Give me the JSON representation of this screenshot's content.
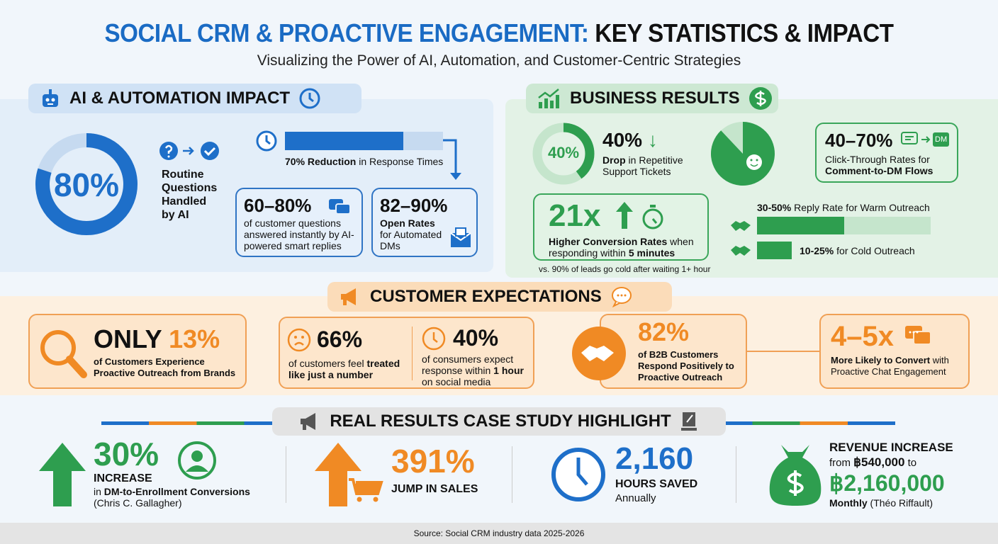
{
  "header": {
    "title_part1": "SOCIAL CRM & PROACTIVE ENGAGEMENT:",
    "title_part2": "KEY STATISTICS & IMPACT",
    "subtitle": "Visualizing the Power of AI, Automation, and Customer-Centric Strategies"
  },
  "colors": {
    "blue": "#1e6fc9",
    "green": "#2e9e4f",
    "orange": "#f08a24",
    "dark": "#111111"
  },
  "ai": {
    "heading": "AI & AUTOMATION IMPACT",
    "donut_value": "80%",
    "donut_fraction": 0.8,
    "donut_label": [
      "Routine",
      "Questions",
      "Handled",
      "by AI"
    ],
    "response_bar_fraction": 0.7,
    "response_bold": "70% Reduction",
    "response_rest": " in Response Times",
    "box1": {
      "value": "60–80%",
      "text": "of customer questions answered instantly by AI-powered smart replies"
    },
    "box2": {
      "value": "82–90%",
      "bold": "Open Rates",
      "text": "for Automated DMs"
    }
  },
  "business": {
    "heading": "BUSINESS RESULTS",
    "donut_value": "40%",
    "donut_fraction": 0.4,
    "drop_value": "40%",
    "drop_bold": "Drop",
    "drop_rest": " in Repetitive Support Tickets",
    "pie_fraction": 0.88,
    "ctr": {
      "value": "40–70%",
      "dm_badge": "DM",
      "line1": "Click-Through Rates for",
      "line2": "Comment-to-DM Flows"
    },
    "conv": {
      "value": "21x",
      "bold1": "Higher Conversion Rates",
      "rest1": " when",
      "rest2": "responding within ",
      "bold2": "5 minutes"
    },
    "note": "vs. 90% of leads go cold after waiting 1+ hour",
    "warm": {
      "bold": "30-50%",
      "rest": " Reply Rate for Warm Outreach",
      "fraction": 0.5
    },
    "cold": {
      "bold": "10-25%",
      "rest": " for Cold Outreach",
      "fraction": 0.2
    }
  },
  "expect": {
    "heading": "CUSTOMER EXPECTATIONS",
    "only": {
      "word": "ONLY",
      "value": "13%",
      "text": "of Customers Experience Proactive Outreach from Brands"
    },
    "s66": {
      "value": "66%",
      "rest": "of customers feel ",
      "bold": "treated like just a number"
    },
    "s40": {
      "value": "40%",
      "rest": "of consumers expect response within ",
      "bold": "1 hour",
      "rest2": " on social media"
    },
    "b2b": {
      "value": "82%",
      "text": "of B2B Customers Respond Positively to Proactive Outreach"
    },
    "conv": {
      "value": "4–5x",
      "bold": "More Likely to Convert",
      "rest": " with Proactive Chat Engagement"
    }
  },
  "case": {
    "heading": "REAL RESULTS CASE STUDY HIGHLIGHT",
    "c1": {
      "value": "30%",
      "label": "INCREASE",
      "pre": "in ",
      "bold": "DM-to-Enrollment Conversions",
      "who": "(Chris C. Gallagher)"
    },
    "c2": {
      "value": "391%",
      "label": "JUMP IN SALES"
    },
    "c3": {
      "value": "2,160",
      "label": "HOURS SAVED",
      "sub": "Annually"
    },
    "c4": {
      "label": "REVENUE INCREASE",
      "from_pre": "from ",
      "from": "฿540,000",
      "to": " to",
      "value": "฿2,160,000",
      "bold": "Monthly",
      "who": " (Théo Riffault)"
    }
  },
  "footer": {
    "source": "Source: Social CRM industry data 2025-2026"
  }
}
